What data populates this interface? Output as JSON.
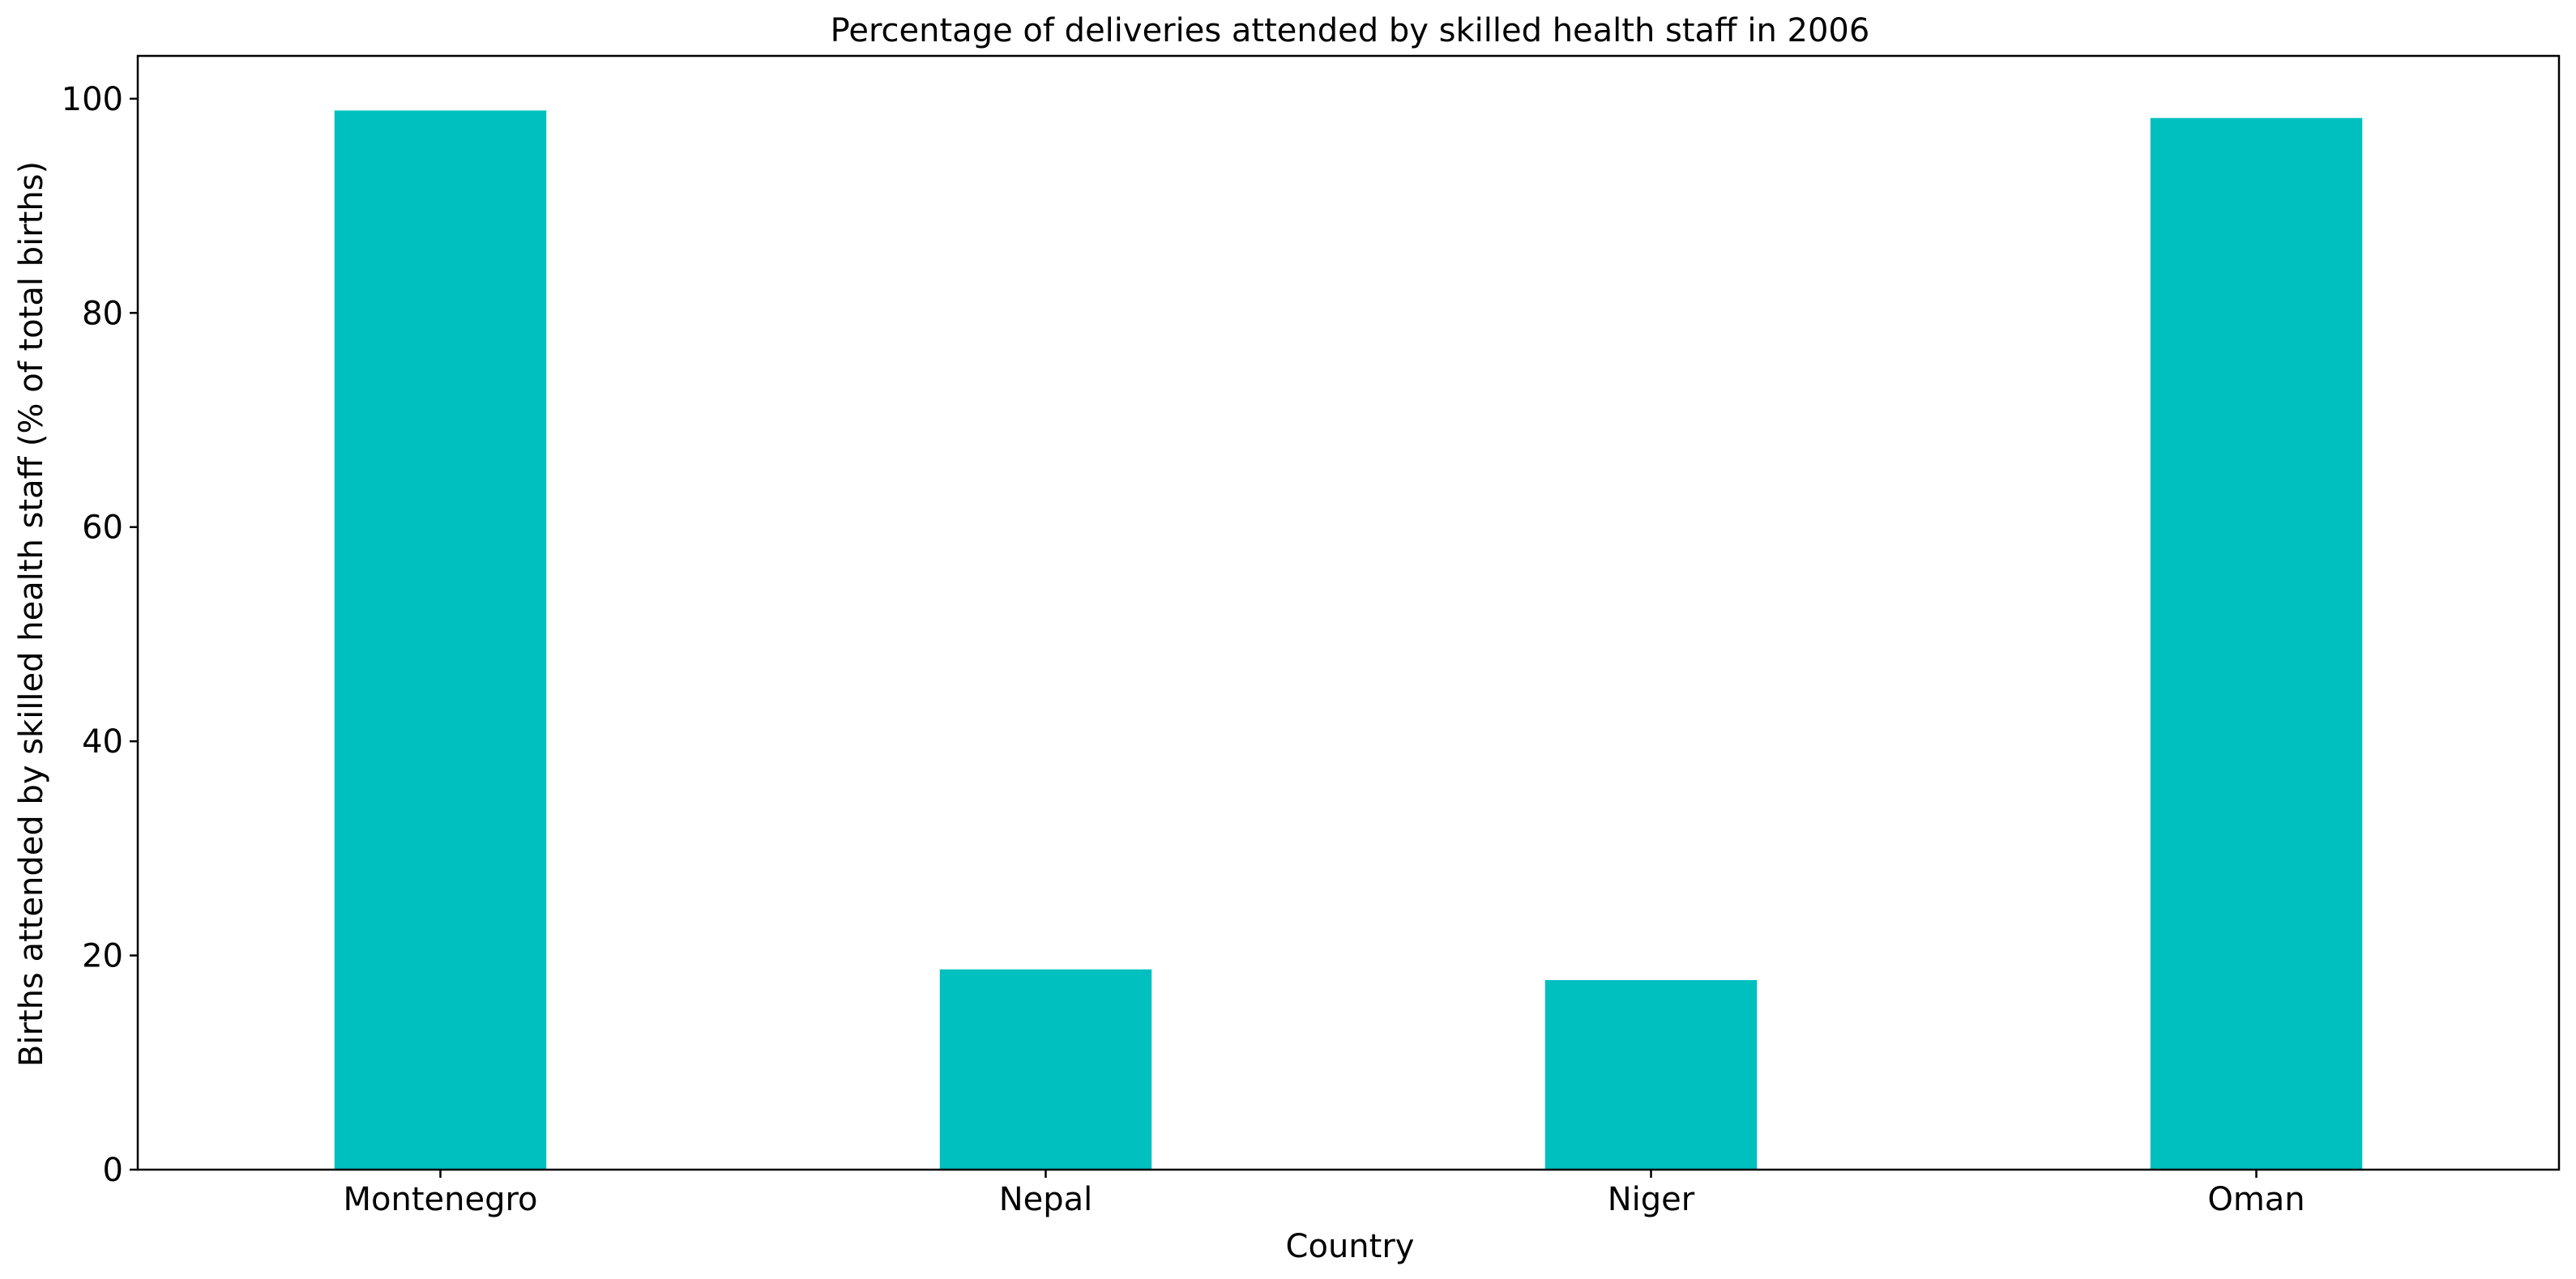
{
  "chart_data": {
    "type": "bar",
    "title": "Percentage of deliveries attended by skilled health staff in 2006",
    "xlabel": "Country",
    "ylabel": "Births attended by skilled health staff (% of total births)",
    "categories": [
      "Montenegro",
      "Nepal",
      "Niger",
      "Oman"
    ],
    "values": [
      98.9,
      18.7,
      17.7,
      98.2
    ],
    "ylim": [
      0,
      104
    ],
    "yticks": [
      0,
      20,
      40,
      60,
      80,
      100
    ],
    "grid": false,
    "legend": "none",
    "bar_color": "#00bfbf"
  }
}
